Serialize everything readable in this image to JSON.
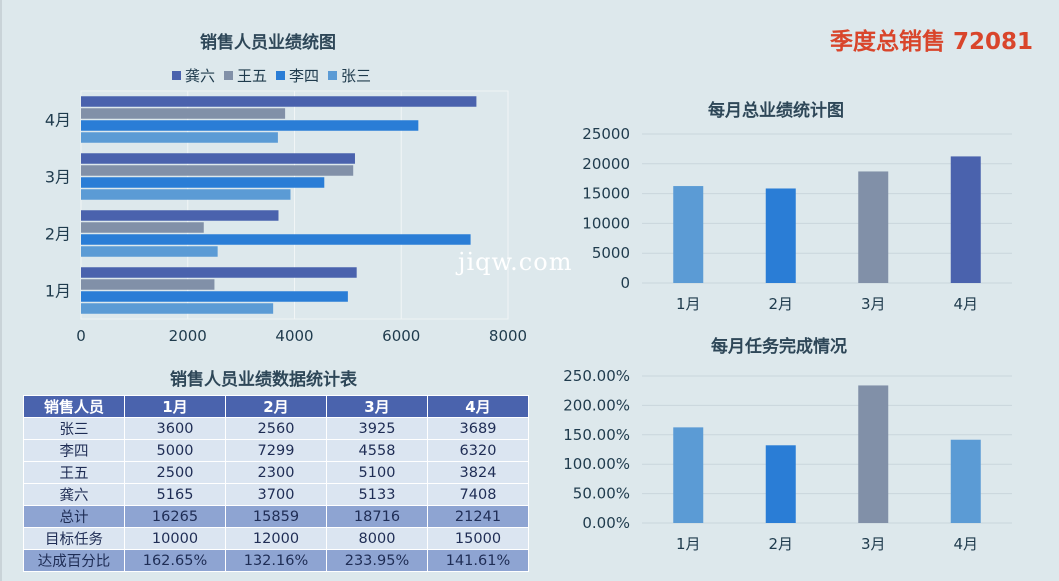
{
  "quarter_total": {
    "label": "季度总销售",
    "value": "72081"
  },
  "watermark": "jiqw.com",
  "colors": {
    "liu": "#4a62ad",
    "wang": "#8190a8",
    "li": "#2a7dd6",
    "zhang": "#5b9bd5",
    "blueA": "#5b9bd5",
    "blueB": "#2a7dd6",
    "grayC": "#8190a8",
    "darkD": "#4a62ad"
  },
  "chart_data": [
    {
      "type": "bar",
      "orientation": "horizontal",
      "title": "销售人员业绩统图",
      "categories": [
        "1月",
        "2月",
        "3月",
        "4月"
      ],
      "series": [
        {
          "name": "龚六",
          "values": [
            5165,
            3700,
            5133,
            7408
          ]
        },
        {
          "name": "王五",
          "values": [
            2500,
            2300,
            5100,
            3824
          ]
        },
        {
          "name": "李四",
          "values": [
            5000,
            7299,
            4558,
            6320
          ]
        },
        {
          "name": "张三",
          "values": [
            3600,
            2560,
            3925,
            3689
          ]
        }
      ],
      "xlim": [
        0,
        8000
      ],
      "xticks": [
        "0",
        "2000",
        "4000",
        "6000",
        "8000"
      ],
      "legend": "top"
    },
    {
      "type": "bar",
      "title": "每月总业绩统计图",
      "categories": [
        "1月",
        "2月",
        "3月",
        "4月"
      ],
      "values": [
        16265,
        15859,
        18716,
        21241
      ],
      "ylim": [
        0,
        25000
      ],
      "yticks": [
        "25000",
        "20000",
        "15000",
        "10000",
        "5000",
        "0"
      ]
    },
    {
      "type": "bar",
      "title": "每月任务完成情况",
      "categories": [
        "1月",
        "2月",
        "3月",
        "4月"
      ],
      "values": [
        162.65,
        132.16,
        233.95,
        141.61
      ],
      "ylim": [
        0,
        250
      ],
      "yticks": [
        "250.00%",
        "200.00%",
        "150.00%",
        "100.00%",
        "50.00%",
        "0.00%"
      ]
    }
  ],
  "table": {
    "title": "销售人员业绩数据统计表",
    "headers": [
      "销售人员",
      "1月",
      "2月",
      "3月",
      "4月"
    ],
    "rows": [
      [
        "张三",
        "3600",
        "2560",
        "3925",
        "3689"
      ],
      [
        "李四",
        "5000",
        "7299",
        "4558",
        "6320"
      ],
      [
        "王五",
        "2500",
        "2300",
        "5100",
        "3824"
      ],
      [
        "龚六",
        "5165",
        "3700",
        "5133",
        "7408"
      ],
      [
        "总计",
        "16265",
        "15859",
        "18716",
        "21241"
      ],
      [
        "目标任务",
        "10000",
        "12000",
        "8000",
        "15000"
      ],
      [
        "达成百分比",
        "162.65%",
        "132.16%",
        "233.95%",
        "141.61%"
      ]
    ]
  }
}
